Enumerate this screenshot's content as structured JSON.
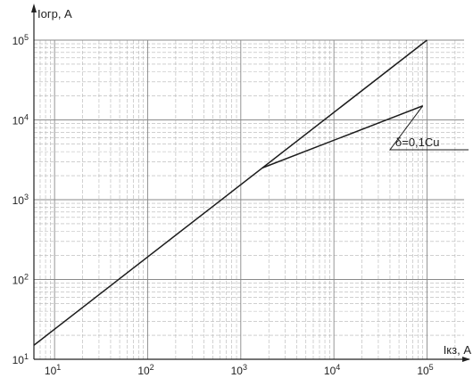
{
  "chart_data": {
    "type": "line",
    "xlabel": "Iкз, A",
    "ylabel": "Iогр, A",
    "xscale": "log",
    "yscale": "log",
    "xlim": [
      6,
      250000
    ],
    "ylim": [
      10,
      100000
    ],
    "grid": true,
    "x_ticks": [
      {
        "value": 10,
        "base": "10",
        "exp": "1"
      },
      {
        "value": 100,
        "base": "10",
        "exp": "2"
      },
      {
        "value": 1000,
        "base": "10",
        "exp": "3"
      },
      {
        "value": 10000,
        "base": "10",
        "exp": "4"
      },
      {
        "value": 100000,
        "base": "10",
        "exp": "5"
      }
    ],
    "y_ticks": [
      {
        "value": 10,
        "base": "10",
        "exp": "1"
      },
      {
        "value": 100,
        "base": "10",
        "exp": "2"
      },
      {
        "value": 1000,
        "base": "10",
        "exp": "3"
      },
      {
        "value": 10000,
        "base": "10",
        "exp": "4"
      },
      {
        "value": 100000,
        "base": "10",
        "exp": "5"
      }
    ],
    "series": [
      {
        "points": [
          [
            6,
            15
          ],
          [
            100000,
            100000
          ]
        ]
      },
      {
        "points": [
          [
            1700,
            2500
          ],
          [
            90000,
            15000
          ]
        ]
      }
    ],
    "annotations": [
      {
        "text": "δ=0,1Cu",
        "series_index": 1,
        "at": [
          90000,
          15000
        ]
      }
    ]
  }
}
